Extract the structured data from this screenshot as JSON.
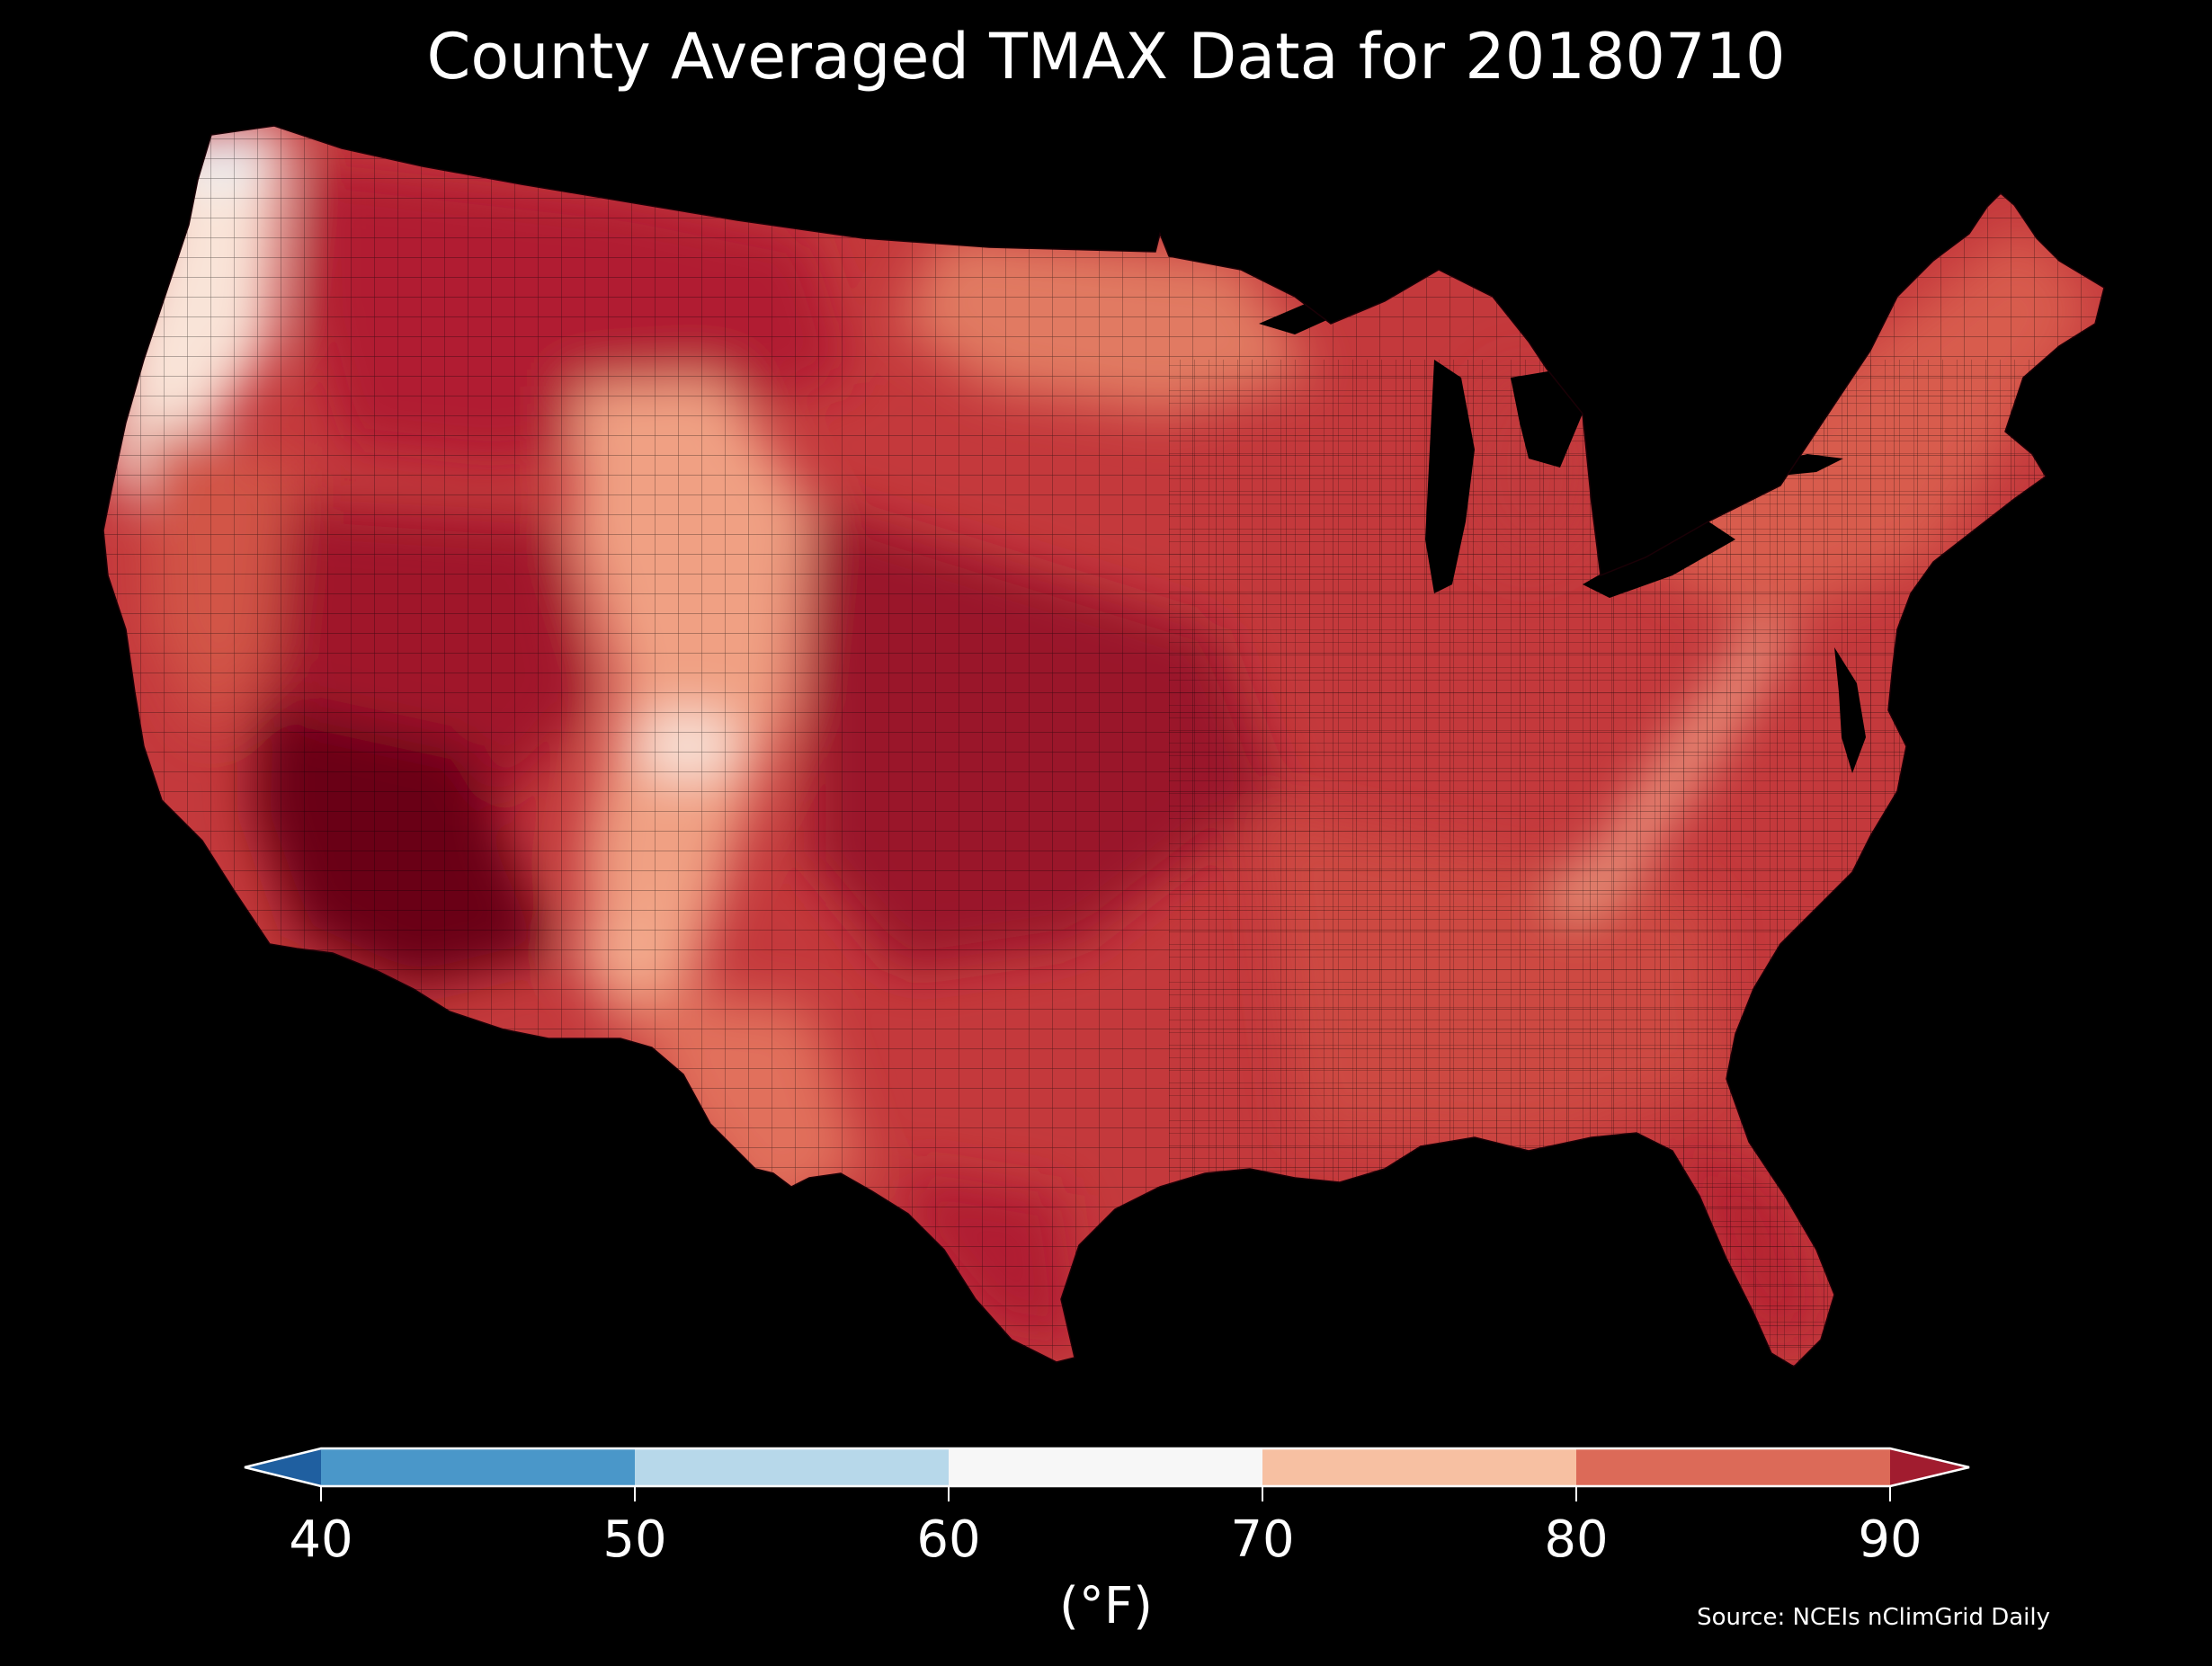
{
  "title": "County Averaged TMAX Data for 20180710",
  "colorbar": {
    "unit": "(°F)",
    "ticks": [
      "40",
      "50",
      "60",
      "70",
      "80",
      "90"
    ],
    "extend": "both",
    "bins": [
      {
        "range": "<40",
        "color": "#1f5fa0"
      },
      {
        "range": "40-50",
        "color": "#4a97c9"
      },
      {
        "range": "50-60",
        "color": "#b7d8ea"
      },
      {
        "range": "60-70",
        "color": "#f7f7f7"
      },
      {
        "range": "70-80",
        "color": "#f7c0a2"
      },
      {
        "range": "80-90",
        "color": "#dc6a58"
      },
      {
        "range": ">90",
        "color": "#a11c2f"
      }
    ]
  },
  "source": "Source: NCEIs nClimGrid Daily",
  "map": {
    "region": "Contiguous United States",
    "variable": "TMAX",
    "date": "20180710",
    "regional_colors": {
      "pacific_coast": "#f9e4d8",
      "northwest_washington": "#e6f0f7",
      "mountains": "#f2a07f",
      "desert_southwest": "#6b0018",
      "great_basin": "#a8172d",
      "plains": "#b42333",
      "midwest": "#c43a3b",
      "southeast": "#cf4a43",
      "appalachians": "#f3a68a",
      "northeast": "#d65a4c",
      "great_lakes": "#000000"
    }
  }
}
